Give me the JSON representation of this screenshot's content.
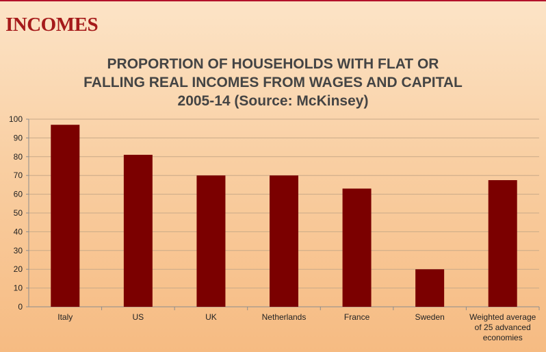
{
  "header": {
    "section_title": "INCOMES"
  },
  "chart_title_lines": [
    "PROPORTION OF HOUSEHOLDS WITH FLAT OR",
    "FALLING REAL INCOMES FROM WAGES AND CAPITAL",
    "2005-14 (Source: McKinsey)"
  ],
  "colors": {
    "bar": "#7b0000",
    "title": "#444444",
    "section_title": "#a51a1a",
    "grid": "#c9aa88"
  },
  "chart_data": {
    "type": "bar",
    "title": "PROPORTION OF HOUSEHOLDS WITH FLAT OR FALLING REAL INCOMES FROM WAGES AND CAPITAL 2005-14 (Source: McKinsey)",
    "categories": [
      [
        "Italy"
      ],
      [
        "US"
      ],
      [
        "UK"
      ],
      [
        "Netherlands"
      ],
      [
        "France"
      ],
      [
        "Sweden"
      ],
      [
        "Weighted average",
        "of 25 advanced",
        "economies"
      ]
    ],
    "values": [
      97,
      81,
      70,
      70,
      63,
      20,
      67.5
    ],
    "xlabel": "",
    "ylabel": "",
    "ylim": [
      0,
      100
    ],
    "yticks": [
      0,
      10,
      20,
      30,
      40,
      50,
      60,
      70,
      80,
      90,
      100
    ],
    "grid": true,
    "legend": "none"
  }
}
